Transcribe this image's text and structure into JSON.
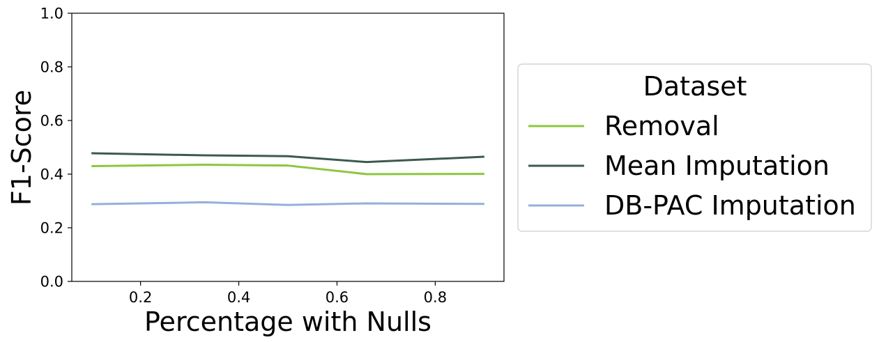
{
  "chart_data": {
    "type": "line",
    "title": "",
    "xlabel": "Percentage with Nulls",
    "ylabel": "F1-Score",
    "xlim": [
      0.06,
      0.94
    ],
    "ylim": [
      0.0,
      1.0
    ],
    "x": [
      0.1,
      0.33,
      0.5,
      0.66,
      0.9
    ],
    "xticks": [
      0.2,
      0.4,
      0.6,
      0.8
    ],
    "xtick_labels": [
      "0.2",
      "0.4",
      "0.6",
      "0.8"
    ],
    "yticks": [
      0.0,
      0.2,
      0.4,
      0.6,
      0.8,
      1.0
    ],
    "ytick_labels": [
      "0.0",
      "0.2",
      "0.4",
      "0.6",
      "0.8",
      "1.0"
    ],
    "grid": false,
    "legend": {
      "title": "Dataset",
      "placement": "outside-right"
    },
    "series": [
      {
        "name": "Removal",
        "color": "#8dc63f",
        "values": [
          0.43,
          0.435,
          0.432,
          0.4,
          0.401
        ]
      },
      {
        "name": "Mean Imputation",
        "color": "#3d5a4c",
        "values": [
          0.478,
          0.47,
          0.467,
          0.445,
          0.465
        ]
      },
      {
        "name": "DB-PAC Imputation",
        "color": "#94b0d8",
        "values": [
          0.288,
          0.295,
          0.285,
          0.291,
          0.289
        ]
      }
    ]
  }
}
